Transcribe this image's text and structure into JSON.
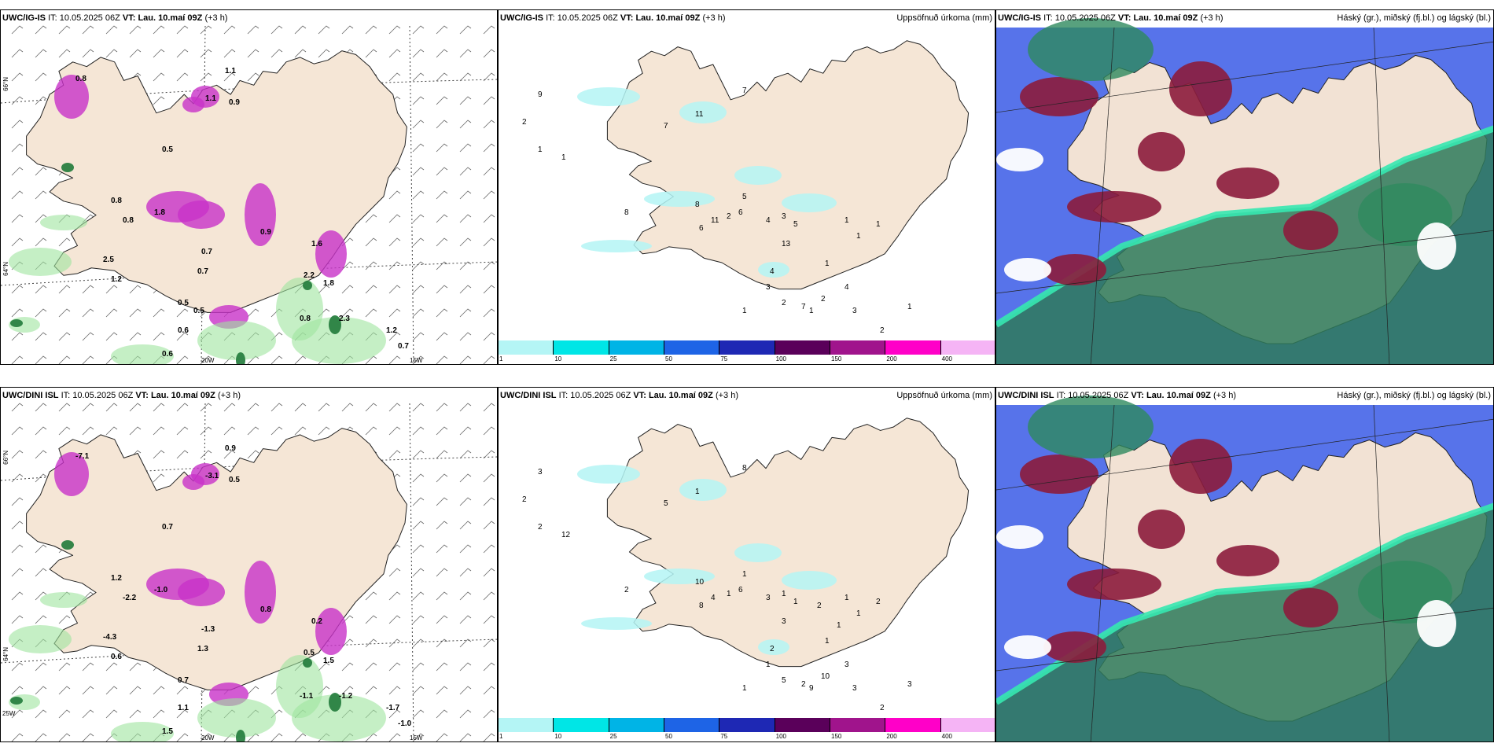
{
  "panels": {
    "p1": {
      "model": "UWC/IG-IS",
      "it_label": "IT:",
      "it": "10.05.2025 06Z",
      "vt_label": "VT:",
      "vt": "Lau. 10.maí 09Z",
      "lead": "(+3 h)",
      "right": ""
    },
    "p2": {
      "model": "UWC/IG-IS",
      "it_label": "IT:",
      "it": "10.05.2025 06Z",
      "vt_label": "VT:",
      "vt": "Lau. 10.maí 09Z",
      "lead": "(+3 h)",
      "right": "Uppsöfnuð úrkoma (mm)"
    },
    "p3": {
      "model": "UWC/IG-IS",
      "it_label": "IT:",
      "it": "10.05.2025 06Z",
      "vt_label": "VT:",
      "vt": "Lau. 10.maí 09Z",
      "lead": "(+3 h)",
      "right": "Háský (gr.), miðský (fj.bl.) og lágský (bl.)"
    },
    "p4": {
      "model": "UWC/DINI ISL",
      "it_label": "IT:",
      "it": "10.05.2025 06Z",
      "vt_label": "VT:",
      "vt": "Lau. 10.maí 09Z",
      "lead": "(+3 h)",
      "right": ""
    },
    "p5": {
      "model": "UWC/DINI ISL",
      "it_label": "IT:",
      "it": "10.05.2025 06Z",
      "vt_label": "VT:",
      "vt": "Lau. 10.maí 09Z",
      "lead": "(+3 h)",
      "right": "Uppsöfnuð úrkoma (mm)"
    },
    "p6": {
      "model": "UWC/DINI ISL",
      "it_label": "IT:",
      "it": "10.05.2025 06Z",
      "vt_label": "VT:",
      "vt": "Lau. 10.maí 09Z",
      "lead": "(+3 h)",
      "right": "Háský (gr.), miðský (fj.bl.) og lágský (bl.)"
    }
  },
  "axes": {
    "lat66": "66°N",
    "lat64": "64°N",
    "lon20": "20W",
    "lon15": "15W",
    "lon25": "25W"
  },
  "colorbar": {
    "labels": [
      "1",
      "10",
      "25",
      "50",
      "75",
      "100",
      "150",
      "200",
      "400"
    ],
    "colors": [
      "#b4f5f5",
      "#00e6e6",
      "#00b4e6",
      "#1e64e6",
      "#1e28b4",
      "#5a005a",
      "#a0148c",
      "#ff00c8",
      "#f5b4f5"
    ]
  },
  "colors": {
    "land": "#f5e6d6",
    "precip_green": "#9ee59e",
    "precip_dark": "#207a3a",
    "magenta": "#c832c8",
    "rain_cyan": "#b4f5f5"
  },
  "precip_labels_top": [
    "9",
    "2",
    "1",
    "1",
    "8",
    "7",
    "11",
    "7",
    "8",
    "6",
    "2",
    "6",
    "11",
    "5",
    "3",
    "5",
    "4",
    "13",
    "4",
    "3",
    "1",
    "7",
    "1",
    "2",
    "2",
    "4",
    "3",
    "2",
    "1",
    "1",
    "1",
    "1",
    "1",
    "1"
  ],
  "precip_labels_bottom": [
    "3",
    "2",
    "2",
    "12",
    "2",
    "8",
    "1",
    "5",
    "10",
    "8",
    "1",
    "6",
    "4",
    "1",
    "1",
    "1",
    "3",
    "3",
    "2",
    "1",
    "1",
    "2",
    "9",
    "10",
    "5",
    "3",
    "3",
    "2",
    "4",
    "3",
    "2",
    "1",
    "1",
    "1",
    "1",
    "2"
  ],
  "wind_labels_top": [
    "0.8",
    "1.1",
    "0.9",
    "0.5",
    "0.8",
    "1.8",
    "0.8",
    "1.2",
    "0.7",
    "1.1",
    "2.5",
    "2.2",
    "1.8",
    "0.7",
    "0.8",
    "2.3",
    "1.2",
    "0.7",
    "0.6",
    "0.6",
    "0.9",
    "1.6",
    "0.5",
    "0.5"
  ],
  "wind_labels_bottom": [
    "-7.1",
    "0.9",
    "0.5",
    "0.7",
    "1.2",
    "-1.0",
    "-2.2",
    "0.6",
    "-1.3",
    "-3.1",
    "-4.3",
    "0.5",
    "1.5",
    "1.3",
    "-1.1",
    "-1.2",
    "-1.7",
    "-1.0",
    "1.5",
    "1.1",
    "0.8",
    "0.2",
    "0.7"
  ]
}
